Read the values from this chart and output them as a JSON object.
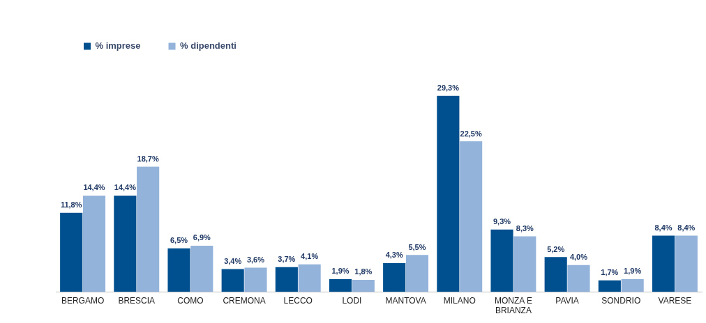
{
  "chart_data": {
    "type": "bar",
    "categories": [
      "BERGAMO",
      "BRESCIA",
      "COMO",
      "CREMONA",
      "LECCO",
      "LODI",
      "MANTOVA",
      "MILANO",
      "MONZA E BRIANZA",
      "PAVIA",
      "SONDRIO",
      "VARESE"
    ],
    "series": [
      {
        "name": "% imprese",
        "color": "#004f8f",
        "values": [
          11.8,
          14.4,
          6.5,
          3.4,
          3.7,
          1.9,
          4.3,
          29.3,
          9.3,
          5.2,
          1.7,
          8.4
        ],
        "value_labels": [
          "11,8%",
          "14,4%",
          "6,5%",
          "3,4%",
          "3,7%",
          "1,9%",
          "4,3%",
          "29,3%",
          "9,3%",
          "5,2%",
          "1,7%",
          "8,4%"
        ]
      },
      {
        "name": "% dipendenti",
        "color": "#93b3da",
        "values": [
          14.4,
          18.7,
          6.9,
          3.6,
          4.1,
          1.8,
          5.5,
          22.5,
          8.3,
          4.0,
          1.9,
          8.4
        ],
        "value_labels": [
          "14,4%",
          "18,7%",
          "6,9%",
          "3,6%",
          "4,1%",
          "1,8%",
          "5,5%",
          "22,5%",
          "8,3%",
          "4,0%",
          "1,9%",
          "8,4%"
        ]
      }
    ],
    "legend": "top left",
    "grid": false
  }
}
